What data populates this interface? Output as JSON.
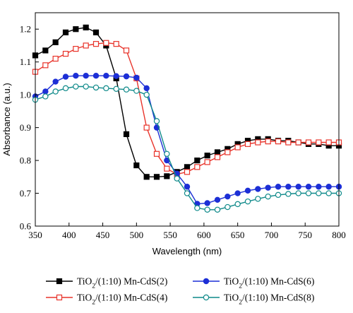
{
  "chart_data": {
    "type": "line",
    "xlabel": "Wavelength (nm)",
    "ylabel": "Absorbance (a.u.)",
    "xlim": [
      350,
      800
    ],
    "ylim": [
      0.6,
      1.25
    ],
    "xticks": [
      350,
      400,
      450,
      500,
      550,
      600,
      650,
      700,
      750,
      800
    ],
    "yticks": [
      0.6,
      0.7,
      0.8,
      0.9,
      1.0,
      1.1,
      1.2
    ],
    "ytick_labels": [
      "0.6",
      "0.7",
      "0.8",
      "0.9",
      "1.0",
      "1.1",
      "1.2"
    ],
    "legend_placement": "bottom",
    "series": [
      {
        "name": "TiO2/(1:10) Mn-CdS(2)",
        "color": "#000000",
        "marker": "filled-square",
        "x": [
          350,
          365,
          380,
          395,
          410,
          425,
          440,
          455,
          470,
          485,
          500,
          515,
          530,
          545,
          560,
          575,
          590,
          605,
          620,
          635,
          650,
          665,
          680,
          695,
          710,
          725,
          740,
          755,
          770,
          785,
          800
        ],
        "y": [
          1.12,
          1.135,
          1.16,
          1.19,
          1.2,
          1.205,
          1.19,
          1.15,
          1.05,
          0.88,
          0.785,
          0.75,
          0.75,
          0.752,
          0.765,
          0.78,
          0.8,
          0.815,
          0.825,
          0.835,
          0.85,
          0.86,
          0.865,
          0.865,
          0.86,
          0.86,
          0.855,
          0.85,
          0.85,
          0.845,
          0.845
        ]
      },
      {
        "name": "TiO2/(1:10) Mn-CdS(4)",
        "color": "#e8332a",
        "marker": "open-square",
        "x": [
          350,
          365,
          380,
          395,
          410,
          425,
          440,
          455,
          470,
          485,
          500,
          515,
          530,
          545,
          560,
          575,
          590,
          605,
          620,
          635,
          650,
          665,
          680,
          695,
          710,
          725,
          740,
          755,
          770,
          785,
          800
        ],
        "y": [
          1.07,
          1.09,
          1.11,
          1.125,
          1.14,
          1.15,
          1.155,
          1.158,
          1.155,
          1.135,
          1.05,
          0.9,
          0.82,
          0.775,
          0.758,
          0.765,
          0.78,
          0.795,
          0.81,
          0.825,
          0.84,
          0.85,
          0.855,
          0.858,
          0.858,
          0.855,
          0.855,
          0.855,
          0.855,
          0.855,
          0.855
        ]
      },
      {
        "name": "TiO2/(1:10) Mn-CdS(6)",
        "color": "#1c2fd6",
        "marker": "filled-circle",
        "x": [
          350,
          365,
          380,
          395,
          410,
          425,
          440,
          455,
          470,
          485,
          500,
          515,
          530,
          545,
          560,
          575,
          590,
          605,
          620,
          635,
          650,
          665,
          680,
          695,
          710,
          725,
          740,
          755,
          770,
          785,
          800
        ],
        "y": [
          0.995,
          1.01,
          1.04,
          1.055,
          1.058,
          1.058,
          1.058,
          1.058,
          1.057,
          1.056,
          1.052,
          1.02,
          0.9,
          0.8,
          0.76,
          0.72,
          0.668,
          0.67,
          0.68,
          0.69,
          0.7,
          0.708,
          0.713,
          0.717,
          0.72,
          0.72,
          0.72,
          0.72,
          0.72,
          0.72,
          0.72
        ]
      },
      {
        "name": "TiO2/(1:10) Mn-CdS(8)",
        "color": "#0f8a8a",
        "marker": "open-circle",
        "x": [
          350,
          365,
          380,
          395,
          410,
          425,
          440,
          455,
          470,
          485,
          500,
          515,
          530,
          545,
          560,
          575,
          590,
          605,
          620,
          635,
          650,
          665,
          680,
          695,
          710,
          725,
          740,
          755,
          770,
          785,
          800
        ],
        "y": [
          0.985,
          0.995,
          1.01,
          1.02,
          1.025,
          1.025,
          1.022,
          1.02,
          1.018,
          1.016,
          1.012,
          1.0,
          0.92,
          0.82,
          0.745,
          0.7,
          0.655,
          0.65,
          0.65,
          0.658,
          0.667,
          0.675,
          0.683,
          0.69,
          0.695,
          0.698,
          0.7,
          0.7,
          0.7,
          0.7,
          0.7
        ]
      }
    ]
  }
}
